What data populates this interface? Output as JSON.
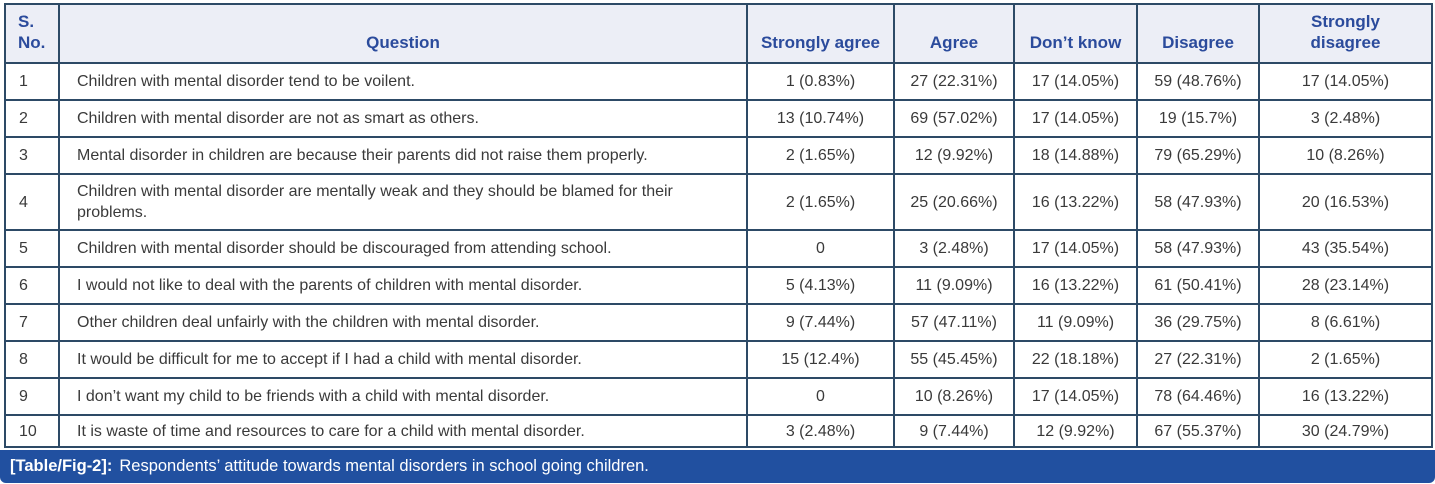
{
  "colors": {
    "header_bg": "#eceef6",
    "header_text": "#2b4b9c",
    "border": "#2d4a66",
    "caption_bg": "#2150a0",
    "body_text": "#3a3a3a"
  },
  "table": {
    "headers": [
      "S. No.",
      "Question",
      "Strongly agree",
      "Agree",
      "Don’t know",
      "Disagree",
      "Strongly disagree"
    ],
    "rows": [
      [
        "1",
        "Children with mental disorder tend to be voilent.",
        "1 (0.83%)",
        "27 (22.31%)",
        "17 (14.05%)",
        "59 (48.76%)",
        "17 (14.05%)"
      ],
      [
        "2",
        "Children with mental disorder are not as smart as others.",
        "13 (10.74%)",
        "69 (57.02%)",
        "17 (14.05%)",
        "19 (15.7%)",
        "3 (2.48%)"
      ],
      [
        "3",
        "Mental disorder in children are because their parents did not raise them properly.",
        "2 (1.65%)",
        "12 (9.92%)",
        "18 (14.88%)",
        "79 (65.29%)",
        "10 (8.26%)"
      ],
      [
        "4",
        "Children with mental disorder are mentally weak and they should be blamed for their problems.",
        "2 (1.65%)",
        "25 (20.66%)",
        "16 (13.22%)",
        "58 (47.93%)",
        "20 (16.53%)"
      ],
      [
        "5",
        "Children with mental disorder should be discouraged from attending school.",
        "0",
        "3 (2.48%)",
        "17 (14.05%)",
        "58 (47.93%)",
        "43 (35.54%)"
      ],
      [
        "6",
        "I would not like to deal with the parents of children with mental disorder.",
        "5 (4.13%)",
        "11 (9.09%)",
        "16 (13.22%)",
        "61 (50.41%)",
        "28 (23.14%)"
      ],
      [
        "7",
        "Other children deal unfairly with the children with mental disorder.",
        "9 (7.44%)",
        "57 (47.11%)",
        "11 (9.09%)",
        "36 (29.75%)",
        "8 (6.61%)"
      ],
      [
        "8",
        "It would be difficult for me to accept if I had a child with mental disorder.",
        "15 (12.4%)",
        "55 (45.45%)",
        "22 (18.18%)",
        "27 (22.31%)",
        "2 (1.65%)"
      ],
      [
        "9",
        "I don’t want my child to be friends with a child with mental disorder.",
        "0",
        "10 (8.26%)",
        "17 (14.05%)",
        "78 (64.46%)",
        "16 (13.22%)"
      ],
      [
        "10",
        "It is waste of time and resources to care for a child with mental disorder.",
        "3 (2.48%)",
        "9 (7.44%)",
        "12 (9.92%)",
        "67 (55.37%)",
        "30 (24.79%)"
      ]
    ]
  },
  "caption": {
    "label": "[Table/Fig-2]:",
    "text": "Respondents’ attitude towards mental disorders in school going children."
  }
}
